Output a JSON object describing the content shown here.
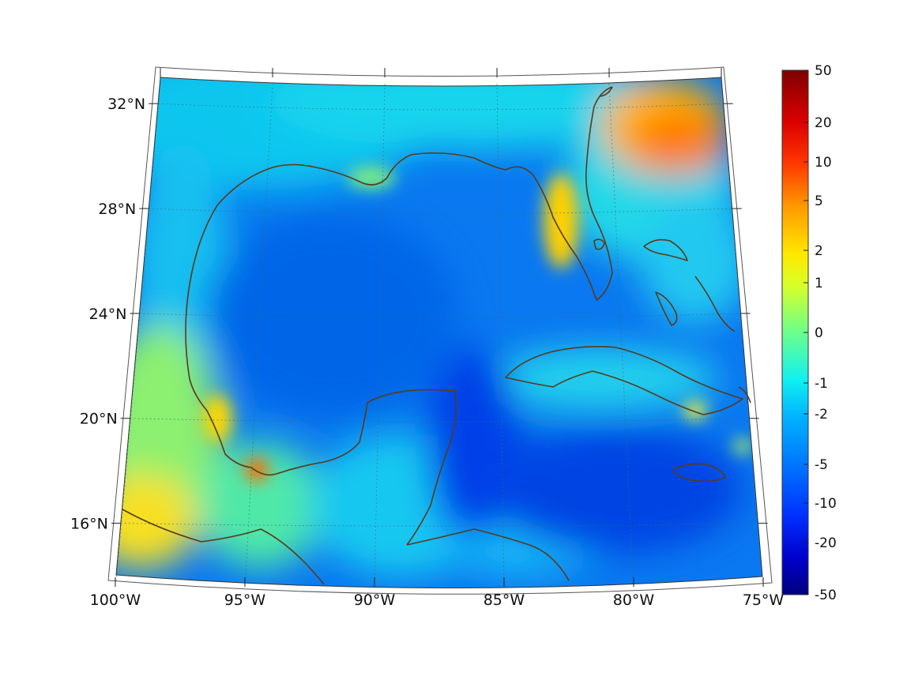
{
  "map": {
    "projection": "conic",
    "lon_range": [
      -100,
      -75
    ],
    "lat_range": [
      14,
      33
    ],
    "lat_ticks": [
      {
        "value": 32,
        "label": "32°N"
      },
      {
        "value": 28,
        "label": "28°N"
      },
      {
        "value": 24,
        "label": "24°N"
      },
      {
        "value": 20,
        "label": "20°N"
      },
      {
        "value": 16,
        "label": "16°N"
      }
    ],
    "lon_ticks": [
      {
        "value": -100,
        "label": "100°W"
      },
      {
        "value": -95,
        "label": "95°W"
      },
      {
        "value": -90,
        "label": "90°W"
      },
      {
        "value": -85,
        "label": "85°W"
      },
      {
        "value": -80,
        "label": "80°W"
      },
      {
        "value": -75,
        "label": "75°W"
      }
    ],
    "grid": true,
    "coastline_color": "#5a3a1a",
    "colormap": "jet"
  },
  "colorbar": {
    "placement": "right",
    "ticks": [
      {
        "value": 50,
        "label": "50"
      },
      {
        "value": 20,
        "label": "20"
      },
      {
        "value": 10,
        "label": "10"
      },
      {
        "value": 5,
        "label": "5"
      },
      {
        "value": 2,
        "label": "2"
      },
      {
        "value": 1,
        "label": "1"
      },
      {
        "value": 0,
        "label": "0"
      },
      {
        "value": -1,
        "label": "-1"
      },
      {
        "value": -2,
        "label": "-2"
      },
      {
        "value": -5,
        "label": "-5"
      },
      {
        "value": -10,
        "label": "-10"
      },
      {
        "value": -20,
        "label": "-20"
      },
      {
        "value": -50,
        "label": "-50"
      }
    ]
  }
}
